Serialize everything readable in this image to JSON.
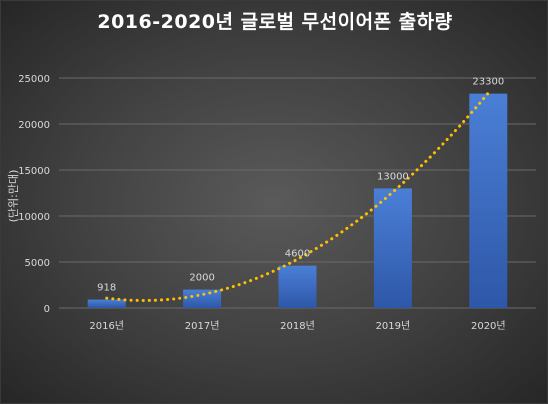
{
  "chart_data": {
    "type": "bar",
    "title": "2016-2020년 글로벌 무선이어폰 출하량",
    "ylabel": "(단위:만대)",
    "xlabel": "",
    "categories": [
      "2016년",
      "2017년",
      "2018년",
      "2019년",
      "2020년"
    ],
    "values": [
      918,
      2000,
      4600,
      13000,
      23300
    ],
    "data_labels": [
      "918",
      "2000",
      "4600",
      "13000",
      "23300"
    ],
    "ylim": [
      0,
      25000
    ],
    "yticks": [
      "0",
      "5000",
      "10000",
      "15000",
      "20000",
      "25000"
    ],
    "grid": true,
    "legend": "none",
    "trendline": {
      "type": "polynomial",
      "style": "dotted"
    },
    "colors": {
      "bar_top": "#4a7fd6",
      "bar_bottom": "#2e57a8",
      "trendline": "#ffc000",
      "grid": "#6a6a6a",
      "text": "#d9d9d9",
      "title": "#ffffff"
    }
  }
}
